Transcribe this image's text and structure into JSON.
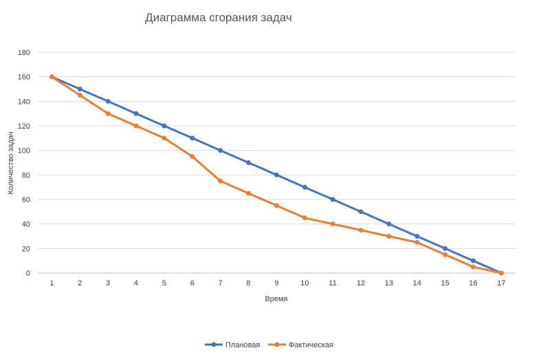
{
  "chart_data": {
    "type": "line",
    "title": "Диаграмма сгорания задач",
    "xlabel": "Время",
    "ylabel": "Количество задач",
    "x": [
      1,
      2,
      3,
      4,
      5,
      6,
      7,
      8,
      9,
      10,
      11,
      12,
      13,
      14,
      15,
      16,
      17
    ],
    "ylim": [
      0,
      180
    ],
    "yticks": [
      0,
      20,
      40,
      60,
      80,
      100,
      120,
      140,
      160,
      180
    ],
    "grid": true,
    "legend": "bottom",
    "series": [
      {
        "name": "Плановая",
        "color": "#4472c4",
        "values": [
          160,
          150,
          140,
          130,
          120,
          110,
          100,
          90,
          80,
          70,
          60,
          50,
          40,
          30,
          20,
          10,
          0
        ]
      },
      {
        "name": "Фактическая",
        "color": "#ed7d31",
        "values": [
          160,
          145,
          130,
          120,
          110,
          95,
          75,
          65,
          55,
          45,
          40,
          35,
          30,
          25,
          15,
          5,
          0
        ]
      }
    ]
  }
}
